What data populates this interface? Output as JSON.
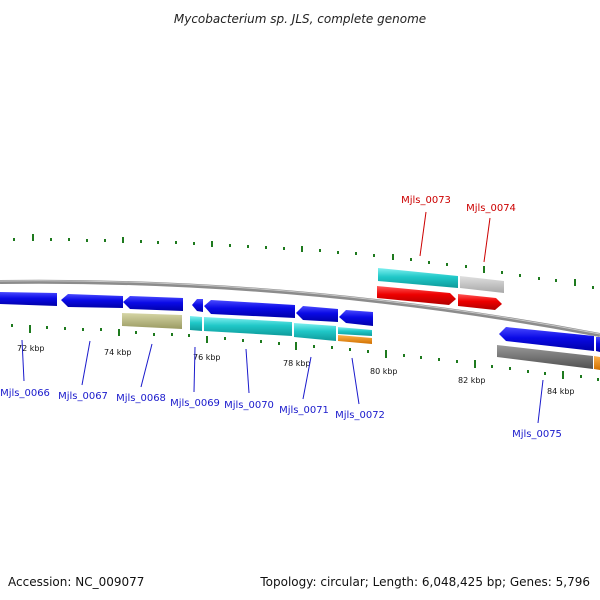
{
  "title": "Mycobacterium sp. JLS, complete genome",
  "footer": {
    "accession": "Accession: NC_009077",
    "summary": "Topology: circular; Length: 6,048,425 bp; Genes: 5,796"
  },
  "scale_labels": [
    "72 kbp",
    "74 kbp",
    "76 kbp",
    "78 kbp",
    "80 kbp",
    "82 kbp",
    "84 kbp"
  ],
  "gene_labels": {
    "forward": [
      "Mjls_0073",
      "Mjls_0074"
    ],
    "reverse": [
      "Mjls_0066",
      "Mjls_0067",
      "Mjls_0068",
      "Mjls_0069",
      "Mjls_0070",
      "Mjls_0071",
      "Mjls_0072",
      "Mjls_0075"
    ]
  },
  "colors": {
    "backbone": "#8c8c8c",
    "gene_blue": "#0a0ae6",
    "cds_cyan": "#20c8c8",
    "forward_red": "#ee0000",
    "olive": "#b5b57a",
    "gray_bar": "#bfbfbf",
    "dark_gray_bar": "#6b6b6b",
    "orange": "#f08c00",
    "tick_green": "#1e7a1e",
    "label_blue": "#1a1acc",
    "label_red": "#cc0000"
  }
}
